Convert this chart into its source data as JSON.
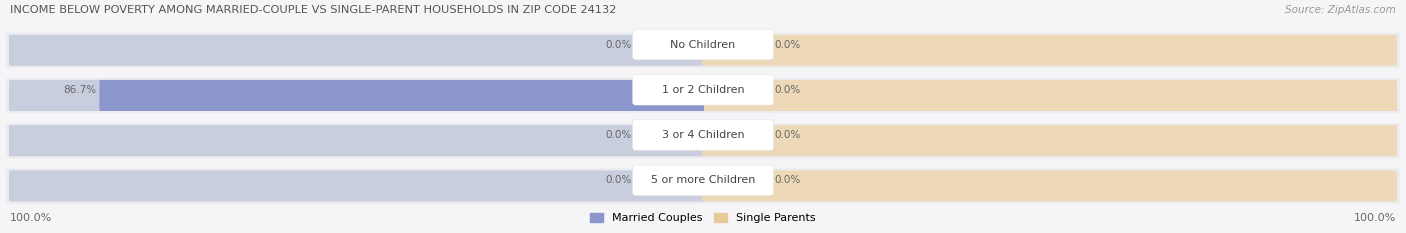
{
  "title": "INCOME BELOW POVERTY AMONG MARRIED-COUPLE VS SINGLE-PARENT HOUSEHOLDS IN ZIP CODE 24132",
  "source": "Source: ZipAtlas.com",
  "categories": [
    "No Children",
    "1 or 2 Children",
    "3 or 4 Children",
    "5 or more Children"
  ],
  "married_values": [
    0.0,
    86.7,
    0.0,
    0.0
  ],
  "single_values": [
    0.0,
    0.0,
    0.0,
    0.0
  ],
  "married_color": "#8B96CC",
  "single_color": "#E8C99A",
  "bar_bg_married": "#C8CEDE",
  "bar_bg_single": "#EDD9B8",
  "row_bg_color": "#EBEBF0",
  "title_color": "#555555",
  "source_color": "#999999",
  "value_color": "#666666",
  "label_color": "#444444",
  "axis_label_left": "100.0%",
  "axis_label_right": "100.0%",
  "max_val": 100.0,
  "figsize": [
    14.06,
    2.33
  ],
  "dpi": 100
}
